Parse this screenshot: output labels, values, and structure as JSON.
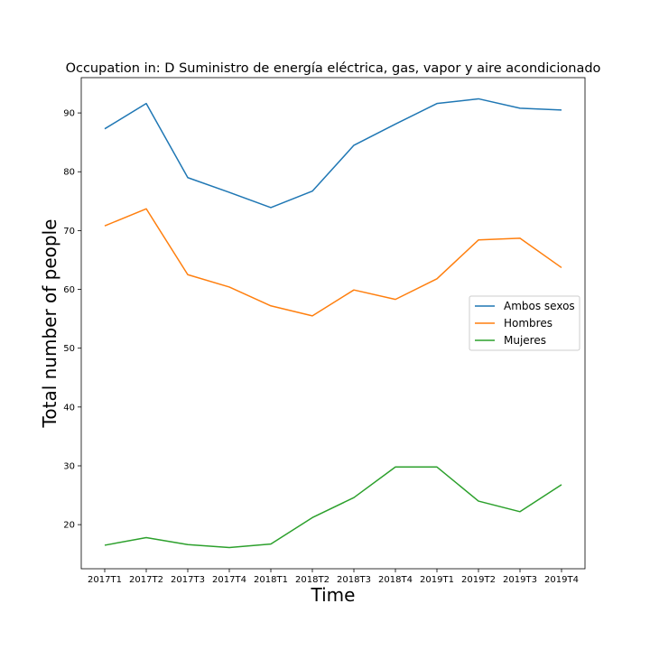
{
  "chart_data": {
    "type": "line",
    "title": "Occupation in: D Suministro de energía eléctrica, gas, vapor y aire acondicionado",
    "xlabel": "Time",
    "ylabel": "Total number of people",
    "categories": [
      "2017T1",
      "2017T2",
      "2017T3",
      "2017T4",
      "2018T1",
      "2018T2",
      "2018T3",
      "2018T4",
      "2019T1",
      "2019T2",
      "2019T3",
      "2019T4"
    ],
    "y_ticks": [
      20,
      30,
      40,
      50,
      60,
      70,
      80,
      90
    ],
    "ylim": [
      12.5,
      96.0
    ],
    "grid": false,
    "legend_position": "center-right",
    "series": [
      {
        "name": "Ambos sexos",
        "color": "#1f77b4",
        "values": [
          87.3,
          91.6,
          79.0,
          76.5,
          73.9,
          76.7,
          84.5,
          88.1,
          91.6,
          92.4,
          90.8,
          90.5
        ]
      },
      {
        "name": "Hombres",
        "color": "#ff7f0e",
        "values": [
          70.8,
          73.7,
          62.5,
          60.4,
          57.2,
          55.5,
          59.9,
          58.3,
          61.8,
          68.4,
          68.7,
          63.7
        ]
      },
      {
        "name": "Mujeres",
        "color": "#2ca02c",
        "values": [
          16.5,
          17.8,
          16.6,
          16.1,
          16.7,
          21.2,
          24.6,
          29.8,
          29.8,
          24.0,
          22.2,
          26.8
        ]
      }
    ]
  }
}
